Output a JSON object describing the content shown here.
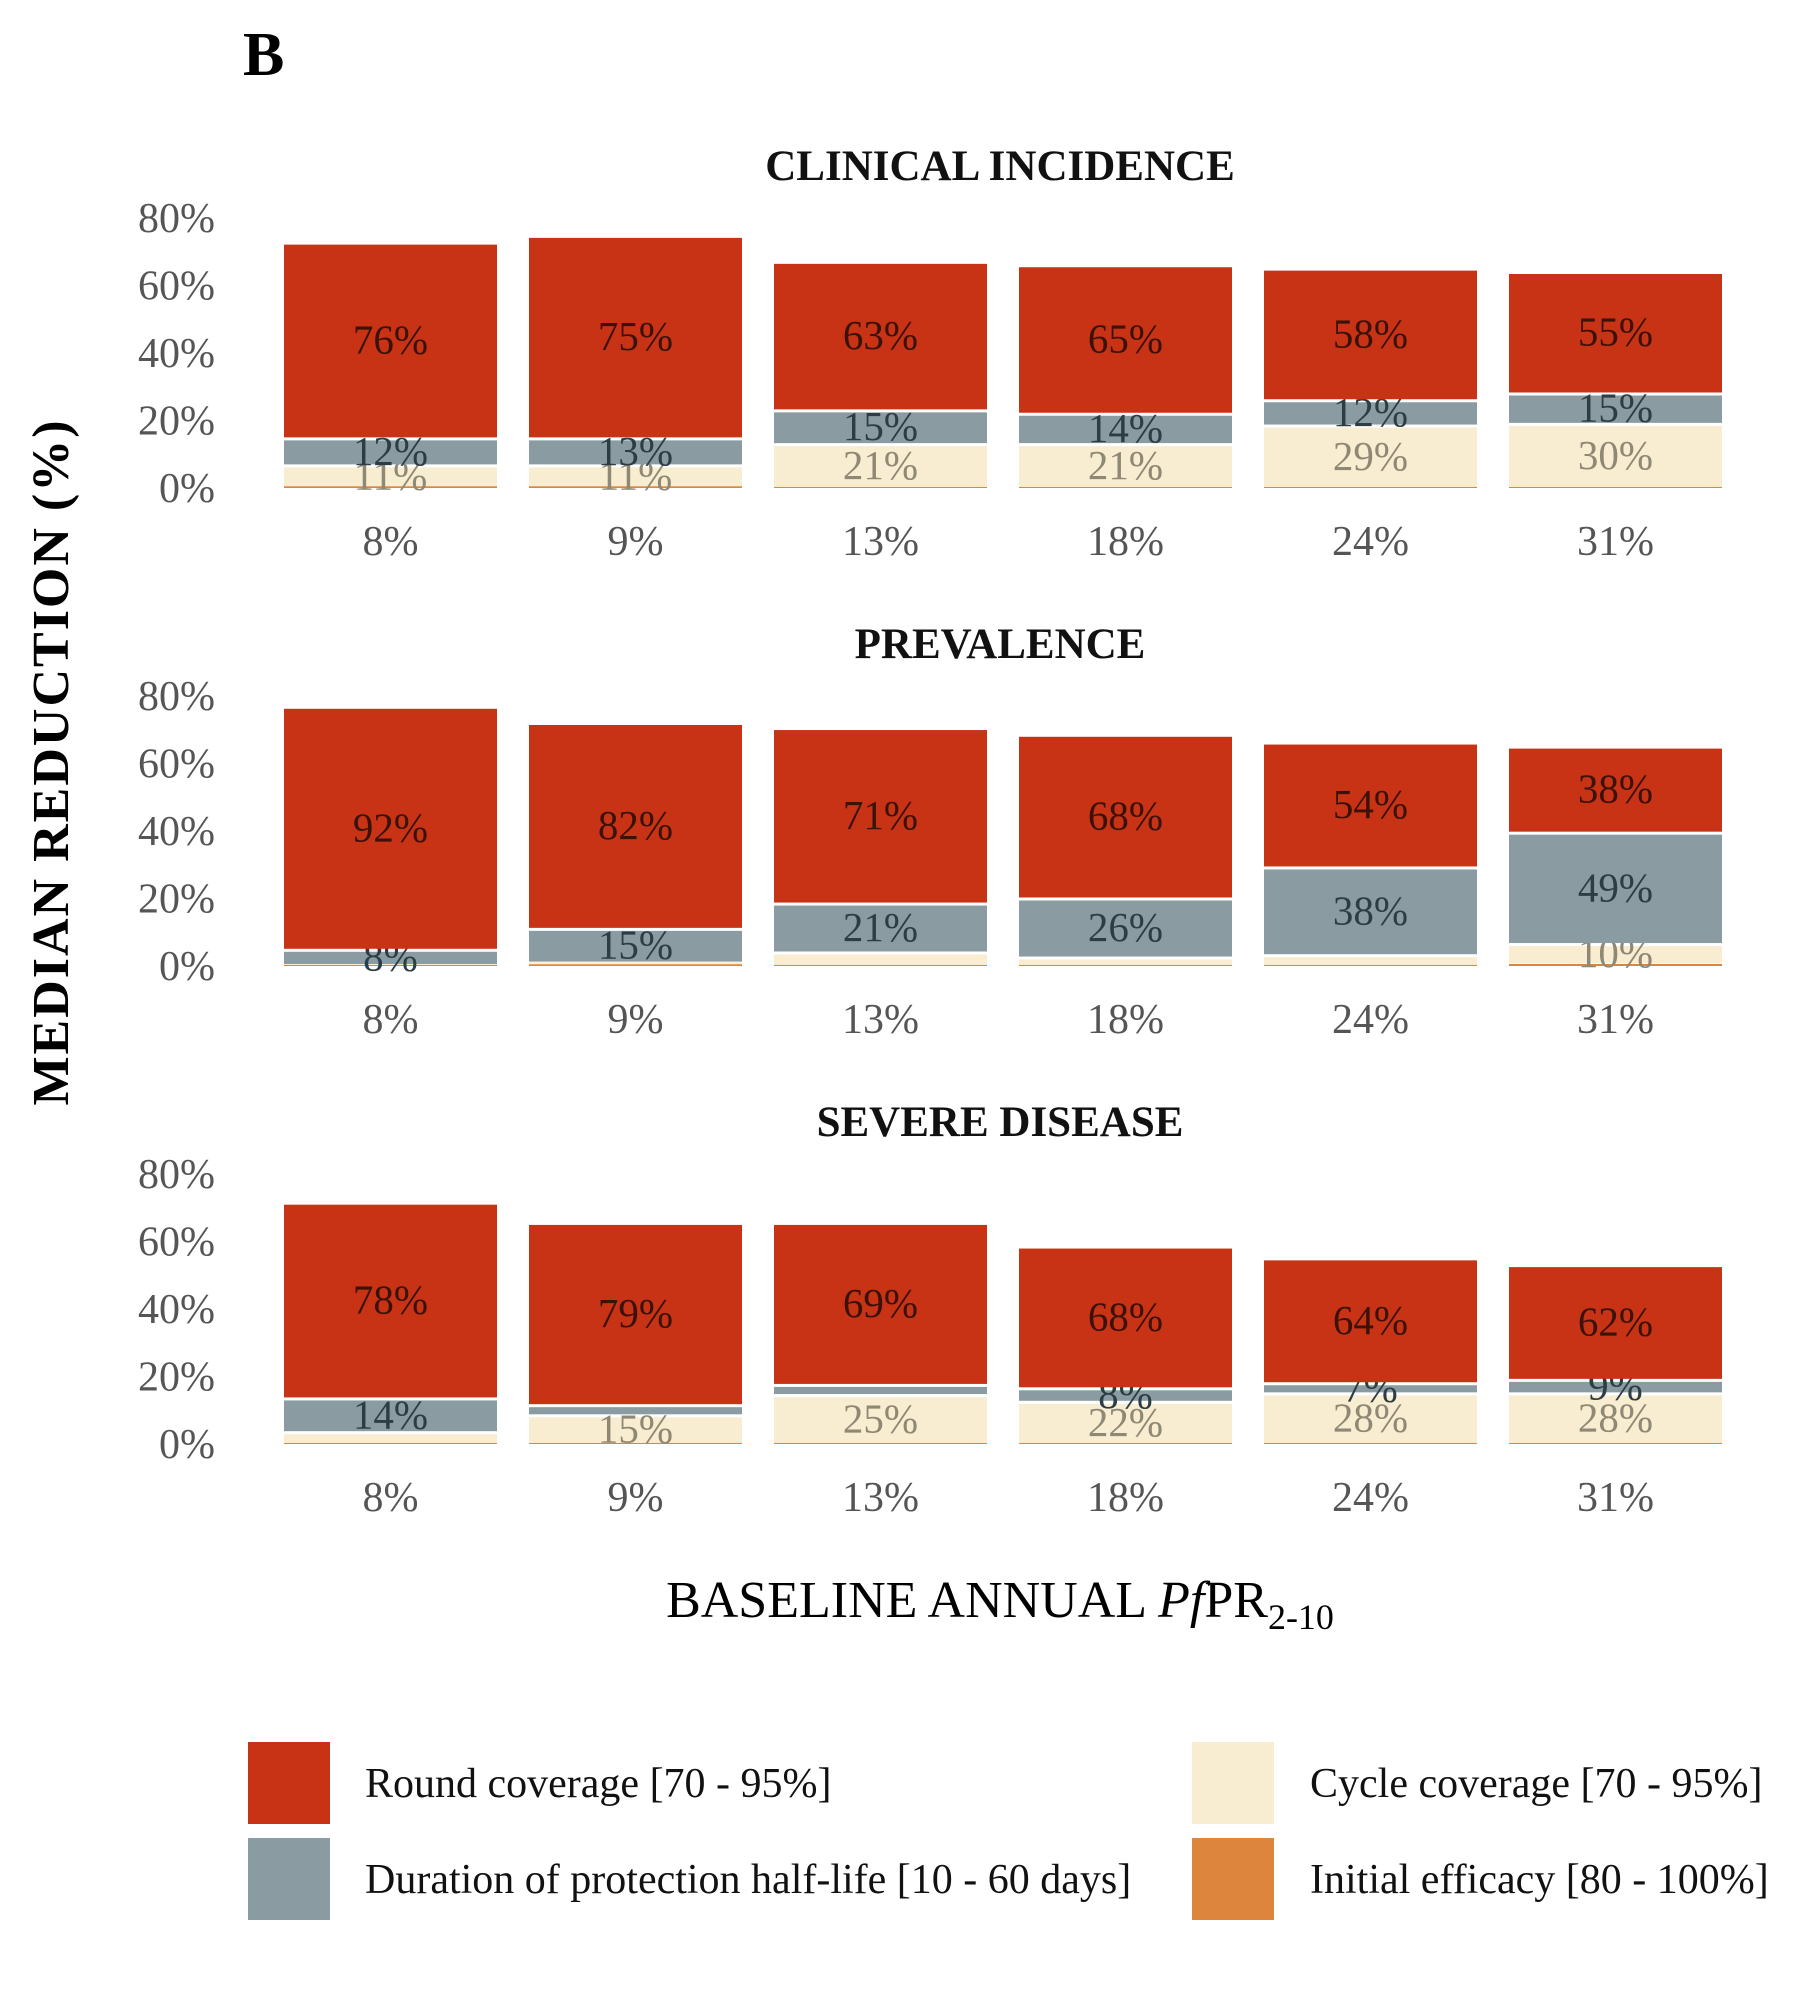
{
  "panel_letter": "B",
  "y_axis_title": "MEDIAN  REDUCTION  (%)",
  "x_axis_title": {
    "prefix": "BASELINE  ANNUAL  ",
    "italic": "Pf",
    "main": "PR",
    "subscript": "2-10"
  },
  "colors": {
    "round_coverage": "#c83215",
    "duration_half_life": "#8a9ca2",
    "cycle_coverage": "#f8edd1",
    "initial_efficacy": "#dd843d",
    "label_on_red": "#3a1208",
    "label_on_grey": "#2d3d44",
    "label_on_cream": "#8f8874"
  },
  "legend": [
    {
      "key": "round_coverage",
      "label": "Round coverage [70 - 95%]"
    },
    {
      "key": "cycle_coverage",
      "label": "Cycle coverage [70 - 95%]"
    },
    {
      "key": "duration_half_life",
      "label": "Duration of protection half-life [10 - 60 days]"
    },
    {
      "key": "initial_efficacy",
      "label": "Initial efficacy [80 - 100%]"
    }
  ],
  "chart_data": [
    {
      "type": "bar",
      "stacked": true,
      "title": "CLINICAL INCIDENCE",
      "categories": [
        "8%",
        "9%",
        "13%",
        "18%",
        "24%",
        "31%"
      ],
      "ylim": [
        0,
        80
      ],
      "yticks": [
        "0%",
        "20%",
        "40%",
        "60%",
        "80%"
      ],
      "grid": false,
      "series": [
        {
          "key": "initial_efficacy",
          "name": "Initial efficacy [80 - 100%]",
          "values": [
            0.5,
            0.5,
            0.3,
            0.3,
            0.3,
            0.3
          ],
          "labels": [
            "",
            "",
            "",
            "",
            "",
            ""
          ]
        },
        {
          "key": "cycle_coverage",
          "name": "Cycle coverage [70 - 95%]",
          "values": [
            6.5,
            6.5,
            13,
            13,
            18.5,
            19
          ],
          "labels": [
            "11%",
            "11%",
            "21%",
            "21%",
            "29%",
            "30%"
          ]
        },
        {
          "key": "duration_half_life",
          "name": "Duration of protection half-life [10 - 60 days]",
          "values": [
            8,
            8,
            10,
            9,
            7.5,
            9
          ],
          "labels": [
            "12%",
            "13%",
            "15%",
            "14%",
            "12%",
            "15%"
          ]
        },
        {
          "key": "round_coverage",
          "name": "Round coverage [70 - 95%]",
          "values": [
            58,
            60,
            44,
            44,
            39,
            36
          ],
          "labels": [
            "76%",
            "75%",
            "63%",
            "65%",
            "58%",
            "55%"
          ]
        }
      ]
    },
    {
      "type": "bar",
      "stacked": true,
      "title": "PREVALENCE",
      "categories": [
        "8%",
        "9%",
        "13%",
        "18%",
        "24%",
        "31%"
      ],
      "ylim": [
        0,
        80
      ],
      "yticks": [
        "0%",
        "20%",
        "40%",
        "60%",
        "80%"
      ],
      "grid": false,
      "series": [
        {
          "key": "initial_efficacy",
          "name": "Initial efficacy [80 - 100%]",
          "values": [
            0.3,
            0.5,
            0.3,
            0.3,
            0.3,
            0.8
          ],
          "labels": [
            "",
            "",
            "",
            "",
            "",
            ""
          ]
        },
        {
          "key": "cycle_coverage",
          "name": "Cycle coverage [70 - 95%]",
          "values": [
            0.3,
            0.8,
            4,
            2.5,
            3.2,
            6
          ],
          "labels": [
            "",
            "",
            "",
            "",
            "",
            "10%"
          ]
        },
        {
          "key": "duration_half_life",
          "name": "Duration of protection half-life [10 - 60 days]",
          "values": [
            4.5,
            10,
            14.5,
            17.5,
            26,
            33
          ],
          "labels": [
            "8%",
            "15%",
            "21%",
            "26%",
            "38%",
            "49%"
          ]
        },
        {
          "key": "round_coverage",
          "name": "Round coverage [70 - 95%]",
          "values": [
            72,
            61,
            52,
            48.5,
            37,
            25.5
          ],
          "labels": [
            "92%",
            "82%",
            "71%",
            "68%",
            "54%",
            "38%"
          ]
        }
      ]
    },
    {
      "type": "bar",
      "stacked": true,
      "title": "SEVERE DISEASE",
      "categories": [
        "8%",
        "9%",
        "13%",
        "18%",
        "24%",
        "31%"
      ],
      "ylim": [
        0,
        80
      ],
      "yticks": [
        "0%",
        "20%",
        "40%",
        "60%",
        "80%"
      ],
      "grid": false,
      "series": [
        {
          "key": "initial_efficacy",
          "name": "Initial efficacy [80 - 100%]",
          "values": [
            0.3,
            0.3,
            0.3,
            0.3,
            0.3,
            0.3
          ],
          "labels": [
            "",
            "",
            "",
            "",
            "",
            ""
          ]
        },
        {
          "key": "cycle_coverage",
          "name": "Cycle coverage [70 - 95%]",
          "values": [
            3.5,
            8.5,
            14.5,
            12.5,
            15,
            15
          ],
          "labels": [
            "",
            "15%",
            "25%",
            "22%",
            "28%",
            "28%"
          ]
        },
        {
          "key": "duration_half_life",
          "name": "Duration of protection half-life [10 - 60 days]",
          "values": [
            10,
            3,
            3,
            4,
            3,
            4
          ],
          "labels": [
            "14%",
            "",
            "",
            "8%",
            "7%",
            "9%"
          ]
        },
        {
          "key": "round_coverage",
          "name": "Round coverage [70 - 95%]",
          "values": [
            58,
            54,
            48,
            42,
            37,
            34
          ],
          "labels": [
            "78%",
            "79%",
            "69%",
            "68%",
            "64%",
            "62%"
          ]
        }
      ]
    }
  ]
}
